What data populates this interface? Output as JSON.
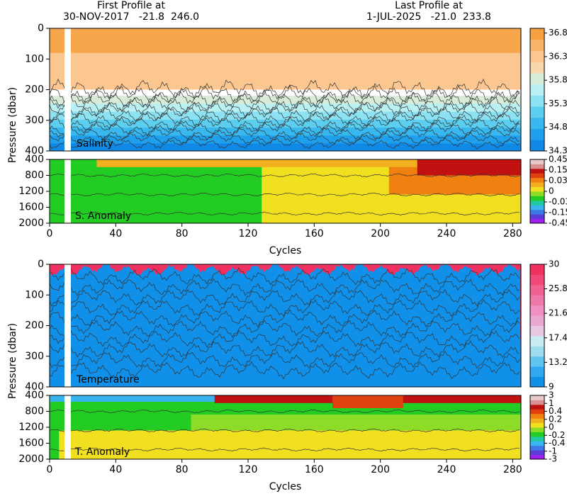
{
  "header": {
    "first_label": "First Profile at",
    "first": "30-NOV-2017   -21.8  246.0",
    "last_label": "Last Profile at",
    "last": "1-JUL-2025   -21.0  233.8"
  },
  "chart_data": [
    {
      "type": "contour",
      "label": "Salinity",
      "ylabel": "Pressure (dbar)",
      "xlim": [
        0,
        285
      ],
      "ylim": [
        400,
        0
      ],
      "yticks": [
        0,
        100,
        200,
        300,
        400
      ],
      "colorbar": {
        "scale": "linear",
        "lim": [
          34.3,
          36.9
        ],
        "ticks": [
          34.3,
          34.8,
          35.3,
          35.8,
          36.3,
          36.8
        ],
        "colors": [
          "#0f88e6",
          "#1fa0ec",
          "#38b8ee",
          "#5ccff0",
          "#8ce2f2",
          "#b8f0f4",
          "#d8ecd8",
          "#fad6ae",
          "#fbc690",
          "#f9b468",
          "#f7a040"
        ]
      }
    },
    {
      "type": "contour",
      "label": "S. Anomaly",
      "xlabel": "Cycles",
      "xlim": [
        0,
        285
      ],
      "ylim": [
        2000,
        400
      ],
      "yticks": [
        400,
        800,
        1200,
        1600,
        2000
      ],
      "xticks": [
        0,
        40,
        80,
        120,
        160,
        200,
        240,
        280
      ],
      "colorbar": {
        "scale": "levels",
        "ticks": [
          -0.45,
          -0.15,
          -0.03,
          0,
          0.03,
          0.15,
          0.45
        ],
        "colors": [
          "#a020f0",
          "#5a3cd8",
          "#3c78e6",
          "#38b4f0",
          "#22c8a0",
          "#22cc22",
          "#8cdc28",
          "#f0e020",
          "#f0b020",
          "#f08010",
          "#e04010",
          "#c01010",
          "#d89090",
          "#e8c8c8"
        ]
      }
    },
    {
      "type": "contour",
      "label": "Temperature",
      "ylabel": "Pressure (dbar)",
      "xlim": [
        0,
        285
      ],
      "ylim": [
        400,
        0
      ],
      "yticks": [
        0,
        100,
        200,
        300,
        400
      ],
      "colorbar": {
        "scale": "linear",
        "lim": [
          9,
          30
        ],
        "ticks": [
          9,
          13.2,
          17.4,
          21.6,
          25.8,
          30
        ],
        "colors": [
          "#1090e8",
          "#30a8f0",
          "#60c4f0",
          "#a0dcf0",
          "#c8ecf4",
          "#e8c8e0",
          "#e8a8d0",
          "#f090c0",
          "#f078a8",
          "#f06090",
          "#f04878",
          "#f03060"
        ]
      }
    },
    {
      "type": "contour",
      "label": "T. Anomaly",
      "xlabel": "Cycles",
      "xlim": [
        0,
        285
      ],
      "ylim": [
        2000,
        400
      ],
      "yticks": [
        400,
        800,
        1200,
        1600,
        2000
      ],
      "xticks": [
        0,
        40,
        80,
        120,
        160,
        200,
        240,
        280
      ],
      "colorbar": {
        "scale": "levels",
        "ticks": [
          -3,
          -1,
          -0.4,
          -0.2,
          0,
          0.2,
          0.4,
          1,
          3
        ],
        "colors": [
          "#a020f0",
          "#5a3cd8",
          "#3c78e6",
          "#38b4f0",
          "#22c8a0",
          "#22cc22",
          "#8cdc28",
          "#f0e020",
          "#f0b020",
          "#f08010",
          "#e04010",
          "#c01010",
          "#d89090",
          "#e8c8c8"
        ]
      }
    }
  ]
}
